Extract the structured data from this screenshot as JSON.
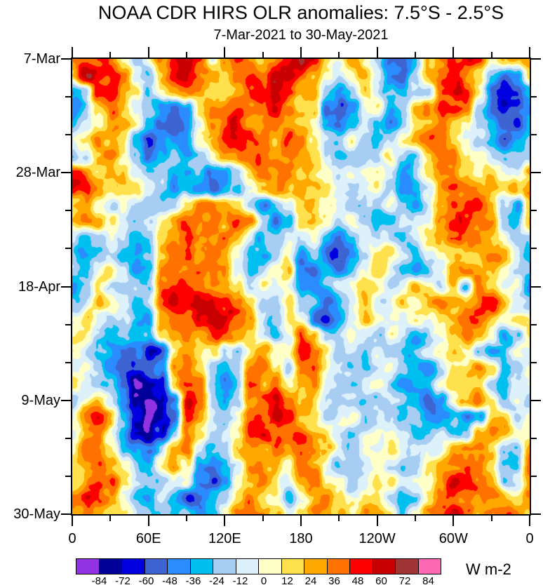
{
  "chart_data": {
    "type": "heatmap",
    "title": "NOAA CDR HIRS OLR anomalies: 7.5°S - 2.5°S",
    "subtitle": "7-Mar-2021 to 30-May-2021",
    "x_axis": {
      "span_deg": 360,
      "minor_every_deg": 30,
      "ticks": [
        {
          "lon": 0,
          "label": "0"
        },
        {
          "lon": 60,
          "label": "60E"
        },
        {
          "lon": 120,
          "label": "120E"
        },
        {
          "lon": 180,
          "label": "180"
        },
        {
          "lon": 240,
          "label": "120W"
        },
        {
          "lon": 300,
          "label": "60W"
        },
        {
          "lon": 360,
          "label": "0"
        }
      ]
    },
    "y_axis": {
      "span_days": 84,
      "minor_every_days": 7,
      "start_date": "7-Mar-2021",
      "end_date": "30-May-2021",
      "ticks": [
        {
          "day": 0,
          "label": "7-Mar"
        },
        {
          "day": 21,
          "label": "28-Mar"
        },
        {
          "day": 42,
          "label": "18-Apr"
        },
        {
          "day": 63,
          "label": "9-May"
        },
        {
          "day": 84,
          "label": "30-May"
        }
      ]
    },
    "colorbar": {
      "unit": "W m-2",
      "levels": [
        -84,
        -72,
        -60,
        -48,
        -36,
        -24,
        -12,
        0,
        12,
        24,
        36,
        48,
        60,
        72,
        84
      ],
      "colors": [
        "#9232e0",
        "#000099",
        "#0000e0",
        "#3e64d2",
        "#2a8cff",
        "#00c0f0",
        "#a8cdf2",
        "#ddf1fb",
        "#ffffc8",
        "#ffe14e",
        "#ffa800",
        "#ff7200",
        "#ff0000",
        "#c80000",
        "#a03434",
        "#ff69b4"
      ]
    },
    "grid": {
      "description": "Estimated OLR anomaly (W m-2) on a coarse grid; columns = longitude 0..350E step 10, rows = days since 7-Mar-2021 step 3",
      "lon_step_deg": 10,
      "time_step_days": 3,
      "values": [
        [
          42,
          54,
          42,
          42,
          18,
          -18,
          -18,
          30,
          54,
          66,
          42,
          -18,
          30,
          54,
          42,
          18,
          42,
          42,
          54,
          42,
          18,
          6,
          18,
          -6,
          -18,
          -54,
          -54,
          -42,
          6,
          18,
          30,
          42,
          42,
          -6,
          18,
          30
        ],
        [
          30,
          66,
          66,
          54,
          42,
          -6,
          -30,
          18,
          54,
          54,
          42,
          30,
          30,
          42,
          42,
          30,
          54,
          66,
          42,
          30,
          18,
          -6,
          6,
          18,
          -6,
          -42,
          -54,
          -18,
          18,
          30,
          42,
          30,
          18,
          -18,
          -42,
          -30
        ],
        [
          -30,
          -18,
          54,
          66,
          42,
          30,
          -18,
          6,
          30,
          42,
          42,
          30,
          18,
          30,
          42,
          42,
          66,
          54,
          42,
          30,
          -30,
          -42,
          -18,
          6,
          -18,
          -30,
          -30,
          -6,
          -18,
          42,
          54,
          42,
          6,
          -42,
          -66,
          -54
        ],
        [
          -42,
          -30,
          18,
          42,
          30,
          18,
          -18,
          -42,
          -54,
          -30,
          30,
          42,
          42,
          42,
          30,
          42,
          54,
          42,
          30,
          18,
          -54,
          -54,
          -42,
          -6,
          6,
          -30,
          -18,
          30,
          42,
          54,
          42,
          30,
          -18,
          -42,
          -66,
          -54
        ],
        [
          -30,
          -18,
          6,
          30,
          18,
          6,
          -30,
          -54,
          -54,
          -42,
          6,
          42,
          42,
          54,
          42,
          42,
          42,
          30,
          18,
          6,
          -42,
          -54,
          -30,
          6,
          -18,
          -42,
          -18,
          6,
          30,
          42,
          30,
          18,
          -6,
          -30,
          -54,
          -66
        ],
        [
          -18,
          6,
          30,
          18,
          6,
          -42,
          -66,
          -42,
          -42,
          -30,
          18,
          30,
          42,
          42,
          54,
          42,
          30,
          42,
          30,
          -6,
          -18,
          -30,
          -6,
          -18,
          -30,
          -18,
          6,
          18,
          42,
          30,
          18,
          6,
          -18,
          -30,
          -66,
          -42
        ],
        [
          -30,
          -18,
          18,
          30,
          6,
          -30,
          -54,
          -30,
          -18,
          -30,
          -18,
          6,
          30,
          42,
          42,
          54,
          42,
          30,
          18,
          6,
          -18,
          -30,
          -18,
          -18,
          -6,
          18,
          -18,
          -30,
          18,
          42,
          42,
          18,
          6,
          -18,
          -30,
          -18
        ],
        [
          42,
          30,
          6,
          18,
          18,
          -18,
          -30,
          -18,
          -30,
          -42,
          -30,
          -54,
          -42,
          -18,
          30,
          42,
          42,
          42,
          30,
          18,
          6,
          -18,
          -6,
          6,
          18,
          -6,
          -30,
          -18,
          30,
          42,
          30,
          6,
          -6,
          18,
          -18,
          -6
        ],
        [
          42,
          42,
          18,
          6,
          18,
          6,
          -18,
          -30,
          -42,
          -30,
          -42,
          -54,
          -30,
          -30,
          6,
          30,
          42,
          30,
          42,
          30,
          18,
          -6,
          -18,
          -6,
          6,
          -18,
          -42,
          -30,
          -6,
          30,
          42,
          30,
          18,
          18,
          6,
          30
        ],
        [
          18,
          30,
          -6,
          -18,
          6,
          -18,
          -30,
          -18,
          -6,
          18,
          30,
          42,
          30,
          18,
          -18,
          -42,
          -18,
          6,
          30,
          42,
          18,
          6,
          -18,
          -30,
          -18,
          6,
          -18,
          -30,
          -18,
          30,
          54,
          42,
          42,
          30,
          -18,
          -42
        ],
        [
          18,
          30,
          30,
          6,
          -18,
          -30,
          -18,
          18,
          42,
          42,
          42,
          42,
          30,
          42,
          30,
          -18,
          -42,
          -18,
          18,
          30,
          6,
          -18,
          -6,
          -18,
          -30,
          -18,
          6,
          -18,
          -6,
          42,
          54,
          54,
          42,
          30,
          -18,
          -30
        ],
        [
          -18,
          -30,
          -18,
          6,
          -18,
          -30,
          -18,
          30,
          42,
          54,
          42,
          42,
          42,
          30,
          -6,
          -30,
          -18,
          6,
          -18,
          6,
          -30,
          -42,
          -18,
          -6,
          -18,
          -6,
          -18,
          -6,
          18,
          30,
          42,
          42,
          30,
          18,
          -6,
          -18
        ],
        [
          -30,
          -42,
          -18,
          -6,
          -18,
          -42,
          -18,
          30,
          42,
          54,
          42,
          54,
          42,
          18,
          -18,
          -30,
          -6,
          18,
          -30,
          -18,
          -54,
          -54,
          -42,
          -18,
          6,
          18,
          -6,
          -18,
          -6,
          18,
          30,
          18,
          18,
          30,
          18,
          -6
        ],
        [
          -18,
          -30,
          -6,
          18,
          -6,
          -42,
          -30,
          42,
          42,
          42,
          54,
          42,
          42,
          6,
          -18,
          -6,
          18,
          30,
          -42,
          -54,
          -42,
          -54,
          -30,
          -6,
          18,
          6,
          -18,
          -30,
          -18,
          6,
          30,
          42,
          30,
          18,
          6,
          -18
        ],
        [
          -30,
          -18,
          6,
          -18,
          -30,
          -18,
          -42,
          30,
          42,
          54,
          42,
          42,
          30,
          18,
          -6,
          18,
          6,
          -6,
          -42,
          -42,
          -30,
          -18,
          -6,
          18,
          6,
          -18,
          -6,
          18,
          6,
          -18,
          18,
          -42,
          30,
          18,
          -6,
          6
        ],
        [
          -18,
          -6,
          18,
          6,
          -18,
          -30,
          -18,
          30,
          42,
          42,
          54,
          66,
          54,
          42,
          18,
          -18,
          -6,
          18,
          -30,
          -18,
          -42,
          -30,
          -18,
          6,
          -6,
          -18,
          6,
          -6,
          18,
          30,
          18,
          30,
          42,
          42,
          18,
          -6
        ],
        [
          6,
          18,
          -6,
          -18,
          -6,
          -30,
          -42,
          18,
          42,
          42,
          54,
          66,
          66,
          42,
          30,
          6,
          -18,
          6,
          -18,
          -42,
          -54,
          -30,
          -6,
          18,
          6,
          -6,
          -18,
          6,
          -6,
          18,
          30,
          42,
          42,
          30,
          6,
          18
        ],
        [
          18,
          6,
          -18,
          -30,
          -18,
          -42,
          -30,
          30,
          42,
          54,
          42,
          54,
          42,
          30,
          18,
          -6,
          -18,
          -6,
          30,
          18,
          -18,
          -6,
          6,
          -6,
          -18,
          6,
          -18,
          -30,
          -18,
          6,
          30,
          42,
          30,
          18,
          -30,
          -18
        ],
        [
          6,
          -6,
          -18,
          -30,
          -42,
          -54,
          -66,
          -54,
          30,
          42,
          30,
          18,
          -18,
          -30,
          18,
          42,
          18,
          6,
          42,
          30,
          18,
          -18,
          -6,
          -18,
          -6,
          -18,
          -30,
          -18,
          -6,
          18,
          30,
          18,
          -18,
          -30,
          -18,
          6
        ],
        [
          -6,
          6,
          -18,
          -42,
          -54,
          -66,
          -66,
          -42,
          42,
          42,
          30,
          -18,
          -42,
          -18,
          42,
          54,
          30,
          -18,
          30,
          42,
          18,
          6,
          -18,
          -30,
          -18,
          6,
          -18,
          -30,
          -42,
          -18,
          18,
          30,
          42,
          18,
          -30,
          -18
        ],
        [
          6,
          -18,
          -30,
          -30,
          -54,
          -90,
          -78,
          -54,
          42,
          54,
          42,
          -30,
          -54,
          -30,
          42,
          30,
          42,
          6,
          18,
          30,
          6,
          -6,
          -30,
          -18,
          -6,
          -18,
          -42,
          -18,
          -18,
          6,
          30,
          42,
          30,
          -18,
          -42,
          -6
        ],
        [
          -18,
          -6,
          18,
          -18,
          -42,
          -90,
          -90,
          -66,
          -42,
          54,
          42,
          -18,
          -42,
          -18,
          30,
          54,
          66,
          30,
          6,
          18,
          -6,
          -18,
          -6,
          -30,
          -18,
          -6,
          -18,
          -30,
          -54,
          -30,
          18,
          42,
          42,
          18,
          -18,
          6
        ],
        [
          6,
          30,
          42,
          18,
          -30,
          -66,
          -90,
          -78,
          -54,
          42,
          30,
          -6,
          -18,
          6,
          42,
          54,
          66,
          42,
          18,
          6,
          -18,
          -6,
          6,
          -18,
          -6,
          -18,
          -30,
          -18,
          -42,
          -54,
          -30,
          -54,
          -42,
          18,
          30,
          -18
        ],
        [
          -6,
          18,
          30,
          -6,
          -42,
          -66,
          -78,
          -66,
          -18,
          30,
          18,
          -18,
          -6,
          18,
          54,
          66,
          54,
          30,
          42,
          18,
          6,
          -18,
          -30,
          -6,
          6,
          -6,
          -18,
          -42,
          -30,
          -18,
          -42,
          -30,
          18,
          42,
          30,
          6
        ],
        [
          18,
          42,
          30,
          6,
          -18,
          -30,
          -42,
          -18,
          18,
          42,
          -18,
          -30,
          -18,
          30,
          42,
          30,
          42,
          18,
          42,
          30,
          18,
          -6,
          -18,
          6,
          -6,
          6,
          -30,
          -18,
          -6,
          -18,
          30,
          42,
          42,
          30,
          -18,
          -30
        ],
        [
          30,
          42,
          54,
          30,
          6,
          -18,
          -30,
          6,
          30,
          18,
          -30,
          -42,
          -30,
          -18,
          30,
          42,
          30,
          -6,
          30,
          18,
          6,
          -18,
          -6,
          -18,
          6,
          -18,
          -42,
          -30,
          18,
          30,
          42,
          54,
          42,
          18,
          -30,
          -42
        ],
        [
          18,
          30,
          42,
          42,
          18,
          -6,
          -18,
          -30,
          -18,
          6,
          -42,
          -54,
          -42,
          6,
          30,
          42,
          18,
          6,
          30,
          42,
          18,
          6,
          -18,
          -6,
          18,
          6,
          -18,
          -6,
          18,
          42,
          66,
          54,
          42,
          30,
          -18,
          -6
        ],
        [
          42,
          54,
          42,
          30,
          -6,
          -30,
          -42,
          -18,
          -54,
          -66,
          -54,
          -30,
          -18,
          18,
          42,
          30,
          18,
          -18,
          18,
          30,
          42,
          18,
          -6,
          18,
          6,
          -18,
          -30,
          -18,
          30,
          54,
          42,
          42,
          30,
          42,
          42,
          30
        ],
        [
          30,
          42,
          30,
          18,
          6,
          -18,
          -30,
          -42,
          -42,
          -18,
          -42,
          -30,
          -6,
          30,
          42,
          42,
          30,
          6,
          30,
          42,
          30,
          18,
          6,
          30,
          18,
          6,
          -18,
          6,
          42,
          54,
          66,
          42,
          30,
          42,
          54,
          42
        ]
      ]
    }
  }
}
